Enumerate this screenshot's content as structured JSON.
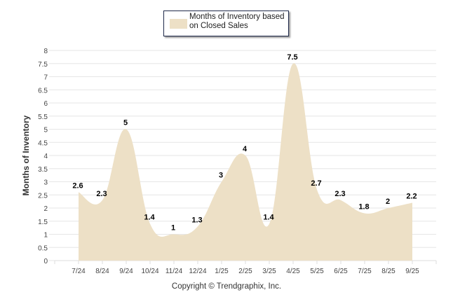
{
  "chart_data": {
    "type": "area",
    "title": "",
    "legend": {
      "label": "Months of Inventory based on Closed Sales",
      "placement": "top-center"
    },
    "categories": [
      "7/24",
      "8/24",
      "9/24",
      "10/24",
      "11/24",
      "12/24",
      "1/25",
      "2/25",
      "3/25",
      "4/25",
      "5/25",
      "6/25",
      "7/25",
      "8/25",
      "9/25"
    ],
    "series": [
      {
        "name": "Months of Inventory based on Closed Sales",
        "values": [
          2.6,
          2.3,
          5,
          1.4,
          1,
          1.3,
          3,
          4,
          1.4,
          7.5,
          2.7,
          2.3,
          1.8,
          2,
          2.2
        ]
      }
    ],
    "xlabel": "",
    "ylabel": "Months of Inventory",
    "ylim": [
      0,
      8
    ],
    "yticks": [
      "0",
      "0.5",
      "1",
      "1.5",
      "2",
      "2.5",
      "3",
      "3.5",
      "4",
      "4.5",
      "5",
      "5.5",
      "6",
      "6.5",
      "7",
      "7.5",
      "8"
    ],
    "grid": true,
    "fill_color": "#ede0c6"
  },
  "footer": {
    "copyright": "Copyright © Trendgraphix, Inc."
  }
}
